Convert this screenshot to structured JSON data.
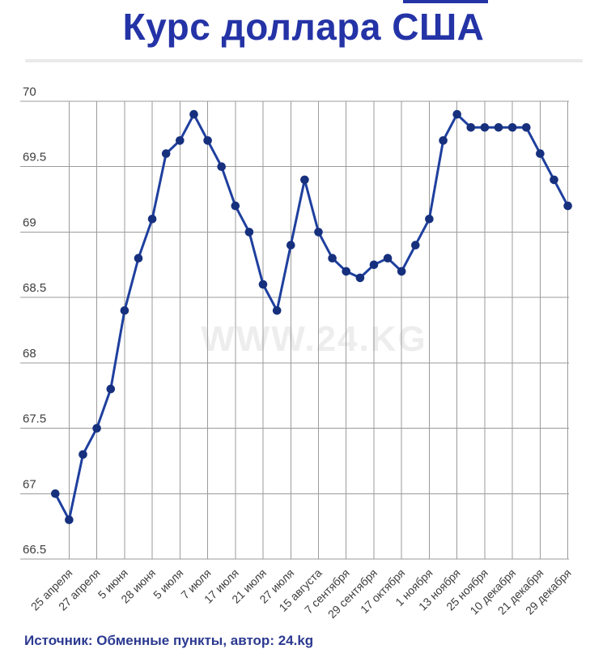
{
  "header": {
    "title": "Курс доллара США"
  },
  "footer": {
    "source_note": "Источник: Обменные пункты, автор: 24.kg"
  },
  "watermark": "WWW.24.KG",
  "colors": {
    "title": "#2433a6",
    "source": "#2b3990",
    "line": "#1e3f9e",
    "dot": "#16307e",
    "grid": "#9b9b9b",
    "axis_text": "#3d3d3d",
    "watermark": "#ededed",
    "divider": "#e9e9e9"
  },
  "chart_data": {
    "type": "line",
    "title": "Курс доллара США",
    "xlabel": "",
    "ylabel": "",
    "ylim": [
      66.5,
      70
    ],
    "y_ticks": [
      66.5,
      67,
      67.5,
      68,
      68.5,
      69,
      69.5,
      70
    ],
    "grid": true,
    "legend": "none",
    "markers": true,
    "series": [
      {
        "name": "Курс доллара США",
        "values": [
          67.0,
          66.8,
          67.3,
          67.5,
          67.8,
          68.4,
          68.8,
          69.1,
          69.6,
          69.7,
          69.9,
          69.7,
          69.5,
          69.2,
          69.0,
          68.6,
          68.4,
          68.9,
          69.4,
          69.0,
          68.8,
          68.7,
          68.65,
          68.75,
          68.8,
          68.7,
          68.9,
          69.1,
          69.7,
          69.9,
          69.8,
          69.8,
          69.8,
          69.8,
          69.8,
          69.6,
          69.4,
          69.2
        ]
      }
    ],
    "x_tick_labels": [
      "25 апреля",
      "27 апреля",
      "5 июня",
      "28 июня",
      "5 июля",
      "7 июля",
      "17 июля",
      "21 июля",
      "27 июля",
      "15 августа",
      "7 сентября",
      "29 сентября",
      "17 октября",
      "1 ноября",
      "13 ноября",
      "25 ноября",
      "10 декабря",
      "21 декабря",
      "29 декабря"
    ],
    "x_tick_point_indices": [
      1,
      3,
      5,
      7,
      9,
      11,
      13,
      15,
      17,
      19,
      21,
      23,
      25,
      27,
      29,
      31,
      33,
      35,
      37
    ],
    "tick_values": [
      66.8,
      67.5,
      68.4,
      69.1,
      69.7,
      69.7,
      69.2,
      68.6,
      68.9,
      69.0,
      68.7,
      68.75,
      68.7,
      69.1,
      69.9,
      69.8,
      69.8,
      69.6,
      69.2
    ]
  }
}
